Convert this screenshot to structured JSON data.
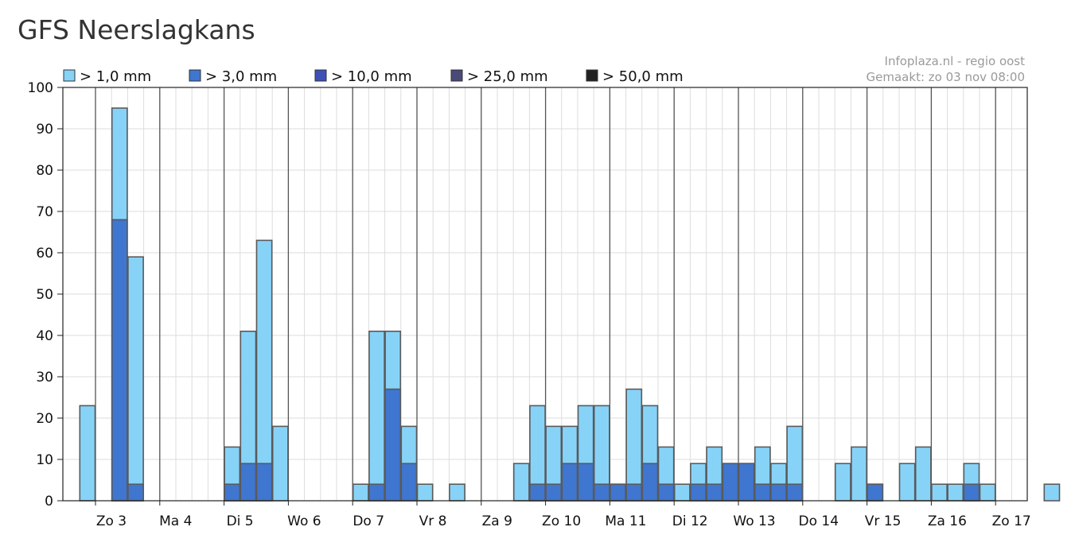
{
  "page": {
    "title": "GFS Neerslagkans"
  },
  "info": {
    "source": "Infoplaza.nl - regio oost",
    "made": "Gemaakt: zo 03 nov 08:00"
  },
  "colors": {
    "gt1": "#87d3f8",
    "gt3": "#3f76d0",
    "gt10": "#3f4fb8",
    "gt25": "#4a4a78",
    "gt50": "#222222",
    "day_line": "#555555",
    "grid": "#dddddd",
    "bar_border": "#5a5a5a"
  },
  "chart_data": {
    "type": "bar",
    "title": "GFS Neerslagkans",
    "ylim": [
      0,
      100
    ],
    "yticks": [
      0,
      10,
      20,
      30,
      40,
      50,
      60,
      70,
      80,
      90,
      100
    ],
    "grid": true,
    "legend_position": "top",
    "legend": [
      {
        "label": "> 1,0 mm",
        "color_key": "gt1"
      },
      {
        "label": "> 3,0 mm",
        "color_key": "gt3"
      },
      {
        "label": "> 10,0 mm",
        "color_key": "gt10"
      },
      {
        "label": "> 25,0 mm",
        "color_key": "gt25"
      },
      {
        "label": "> 50,0 mm",
        "color_key": "gt50"
      }
    ],
    "days": [
      "Zo 3",
      "Ma 4",
      "Di 5",
      "Wo 6",
      "Do 7",
      "Vr 8",
      "Za 9",
      "Zo 10",
      "Ma 11",
      "Di 12",
      "Wo 13",
      "Do 14",
      "Vr 15",
      "Za 16",
      "Zo 17"
    ],
    "slots_per_day": 4,
    "series": [
      {
        "name": "> 1,0 mm",
        "values": [
          23,
          0,
          95,
          59,
          0,
          0,
          0,
          0,
          0,
          13,
          41,
          63,
          18,
          0,
          0,
          0,
          0,
          4,
          41,
          41,
          18,
          4,
          0,
          4,
          0,
          0,
          0,
          9,
          23,
          18,
          18,
          23,
          23,
          4,
          27,
          23,
          13,
          4,
          9,
          13,
          9,
          9,
          13,
          9,
          18,
          0,
          0,
          9,
          13,
          4,
          0,
          9,
          13,
          4,
          4,
          9,
          4,
          0,
          0,
          0,
          4
        ]
      },
      {
        "name": "> 3,0 mm",
        "values": [
          0,
          0,
          68,
          4,
          0,
          0,
          0,
          0,
          0,
          4,
          9,
          9,
          0,
          0,
          0,
          0,
          0,
          0,
          4,
          27,
          9,
          0,
          0,
          0,
          0,
          0,
          0,
          0,
          4,
          4,
          9,
          9,
          4,
          4,
          4,
          9,
          4,
          0,
          4,
          4,
          9,
          9,
          4,
          4,
          4,
          0,
          0,
          0,
          0,
          4,
          0,
          0,
          0,
          0,
          0,
          4,
          0,
          0,
          0,
          0,
          0
        ]
      },
      {
        "name": "> 10,0 mm",
        "values": [
          0,
          0,
          0,
          0,
          0,
          0,
          0,
          0,
          0,
          0,
          0,
          0,
          0,
          0,
          0,
          0,
          0,
          0,
          0,
          0,
          0,
          0,
          0,
          0,
          0,
          0,
          0,
          0,
          0,
          0,
          0,
          0,
          0,
          0,
          0,
          0,
          0,
          0,
          0,
          0,
          0,
          0,
          0,
          0,
          0,
          0,
          0,
          0,
          0,
          0,
          0,
          0,
          0,
          0,
          0,
          0,
          0,
          0,
          0,
          0,
          0
        ]
      },
      {
        "name": "> 25,0 mm",
        "values": [
          0,
          0,
          0,
          0,
          0,
          0,
          0,
          0,
          0,
          0,
          0,
          0,
          0,
          0,
          0,
          0,
          0,
          0,
          0,
          0,
          0,
          0,
          0,
          0,
          0,
          0,
          0,
          0,
          0,
          0,
          0,
          0,
          0,
          0,
          0,
          0,
          0,
          0,
          0,
          0,
          0,
          0,
          0,
          0,
          0,
          0,
          0,
          0,
          0,
          0,
          0,
          0,
          0,
          0,
          0,
          0,
          0,
          0,
          0,
          0,
          0
        ]
      },
      {
        "name": "> 50,0 mm",
        "values": [
          0,
          0,
          0,
          0,
          0,
          0,
          0,
          0,
          0,
          0,
          0,
          0,
          0,
          0,
          0,
          0,
          0,
          0,
          0,
          0,
          0,
          0,
          0,
          0,
          0,
          0,
          0,
          0,
          0,
          0,
          0,
          0,
          0,
          0,
          0,
          0,
          0,
          0,
          0,
          0,
          0,
          0,
          0,
          0,
          0,
          0,
          0,
          0,
          0,
          0,
          0,
          0,
          0,
          0,
          0,
          0,
          0,
          0,
          0,
          0,
          0
        ]
      }
    ]
  }
}
